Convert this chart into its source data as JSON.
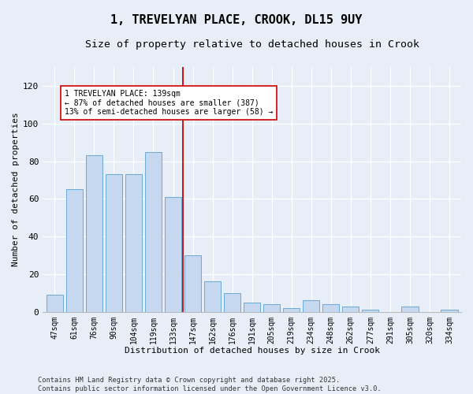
{
  "title1": "1, TREVELYAN PLACE, CROOK, DL15 9UY",
  "title2": "Size of property relative to detached houses in Crook",
  "xlabel": "Distribution of detached houses by size in Crook",
  "ylabel": "Number of detached properties",
  "categories": [
    "47sqm",
    "61sqm",
    "76sqm",
    "90sqm",
    "104sqm",
    "119sqm",
    "133sqm",
    "147sqm",
    "162sqm",
    "176sqm",
    "191sqm",
    "205sqm",
    "219sqm",
    "234sqm",
    "248sqm",
    "262sqm",
    "277sqm",
    "291sqm",
    "305sqm",
    "320sqm",
    "334sqm"
  ],
  "values": [
    9,
    65,
    83,
    73,
    73,
    85,
    61,
    30,
    16,
    10,
    5,
    4,
    2,
    6,
    4,
    3,
    1,
    0,
    3,
    0,
    1
  ],
  "bar_color": "#c5d8f0",
  "bar_edge_color": "#6aaad4",
  "vline_color": "#cc0000",
  "vline_x_idx": 6.5,
  "annotation_text": "1 TREVELYAN PLACE: 139sqm\n← 87% of detached houses are smaller (387)\n13% of semi-detached houses are larger (58) →",
  "annotation_box_facecolor": "#ffffff",
  "annotation_box_edgecolor": "#cc0000",
  "ylim": [
    0,
    130
  ],
  "yticks": [
    0,
    20,
    40,
    60,
    80,
    100,
    120
  ],
  "background_color": "#e8eef8",
  "footer1": "Contains HM Land Registry data © Crown copyright and database right 2025.",
  "footer2": "Contains public sector information licensed under the Open Government Licence v3.0."
}
